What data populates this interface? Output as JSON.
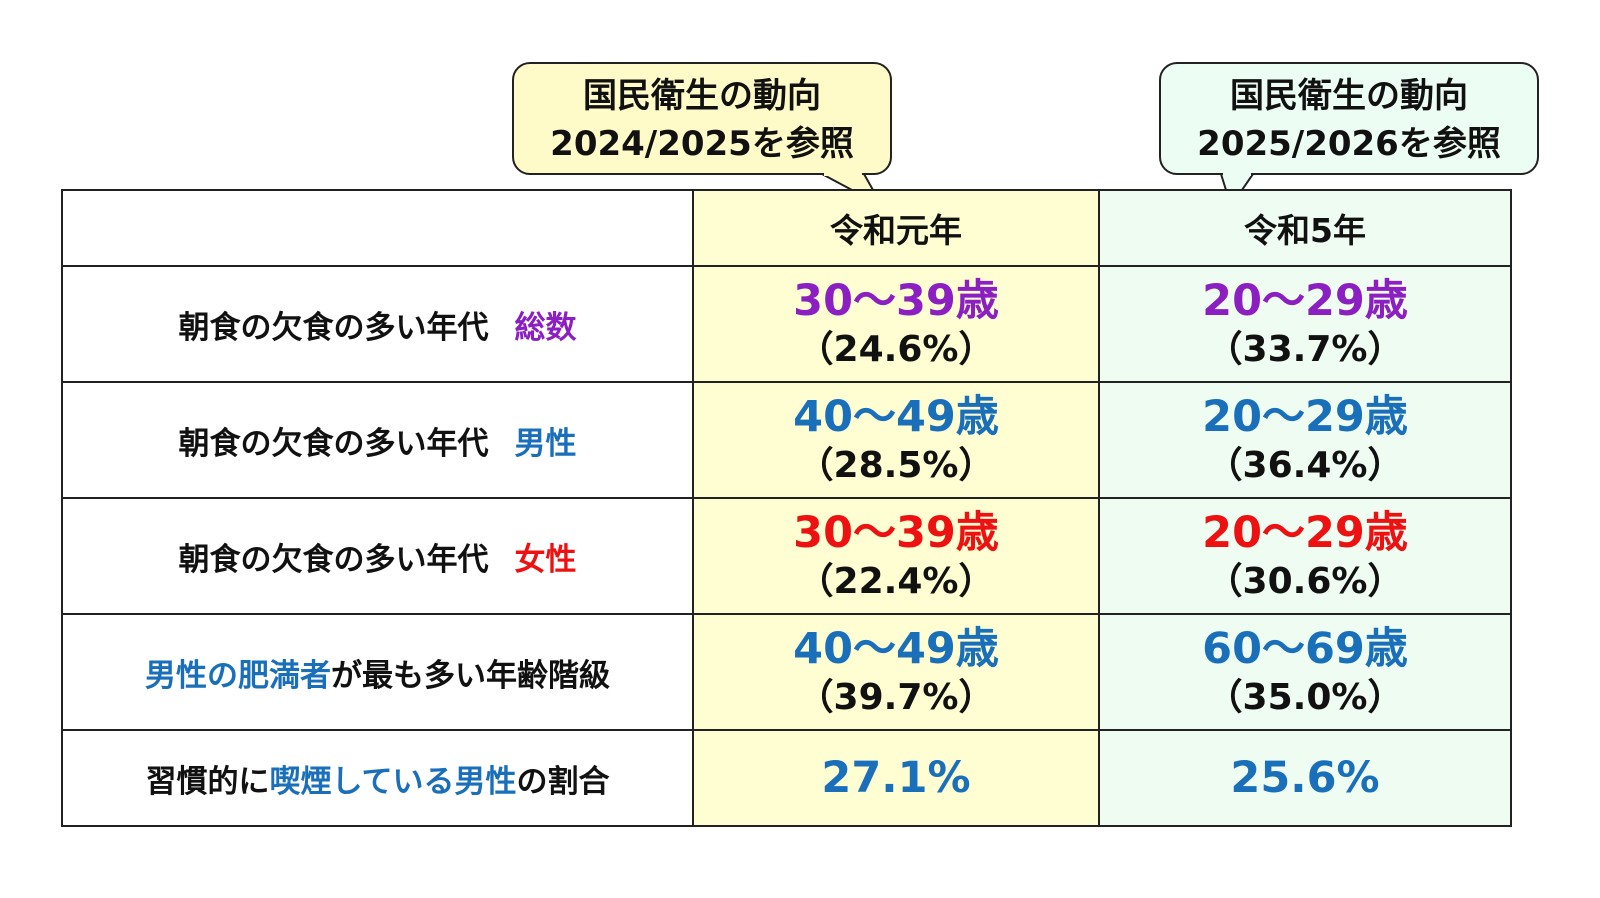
{
  "colors": {
    "purple": "#8b1fc2",
    "blue": "#1a6fba",
    "red": "#ee1111",
    "black": "#111111",
    "yellow_bg": "#fffed2",
    "green_bg": "#effcf2"
  },
  "callouts": [
    {
      "line1": "国民衛生の動向",
      "line2": "2024/2025を参照"
    },
    {
      "line1": "国民衛生の動向",
      "line2": "2025/2026を参照"
    }
  ],
  "header": {
    "col1": "",
    "col2": "令和元年",
    "col3": "令和5年"
  },
  "rows": [
    {
      "label_parts": [
        "朝食の欠食の多い年代",
        "総数"
      ],
      "color": "purple",
      "col2": {
        "age": "30～39歳",
        "pct": "（24.6%）"
      },
      "col3": {
        "age": "20～29歳",
        "pct": "（33.7%）"
      }
    },
    {
      "label_parts": [
        "朝食の欠食の多い年代",
        "男性"
      ],
      "color": "blue",
      "col2": {
        "age": "40～49歳",
        "pct": "（28.5%）"
      },
      "col3": {
        "age": "20～29歳",
        "pct": "（36.4%）"
      }
    },
    {
      "label_parts": [
        "朝食の欠食の多い年代",
        "女性"
      ],
      "color": "red",
      "col2": {
        "age": "30～39歳",
        "pct": "（22.4%）"
      },
      "col3": {
        "age": "20～29歳",
        "pct": "（30.6%）"
      }
    },
    {
      "label_parts": [
        "男性の肥満者",
        "が最も多い年齢階級"
      ],
      "color": "blue",
      "col2": {
        "age": "40～49歳",
        "pct": "（39.7%）"
      },
      "col3": {
        "age": "60～69歳",
        "pct": "（35.0%）"
      }
    },
    {
      "label_parts": [
        "習慣的に",
        "喫煙している男性",
        "の割合"
      ],
      "color": "blue",
      "col2": {
        "value": "27.1%"
      },
      "col3": {
        "value": "25.6%"
      }
    }
  ]
}
